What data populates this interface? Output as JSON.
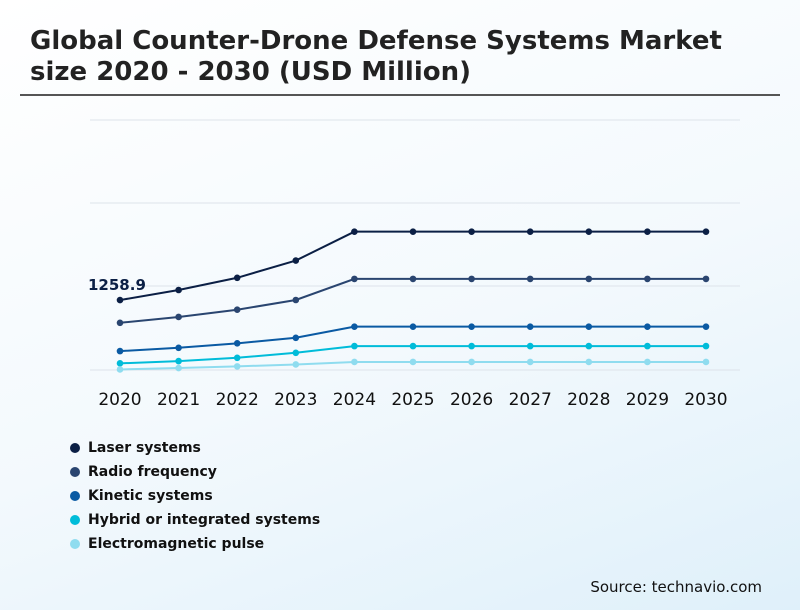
{
  "title": "Global Counter-Drone Defense Systems Market size 2020 - 2030 (USD Million)",
  "source": "Source: technavio.com",
  "chart_data": {
    "type": "line",
    "title": "Global Counter-Drone Defense Systems Market size 2020 - 2030 (USD Million)",
    "categories": [
      "2020",
      "2021",
      "2022",
      "2023",
      "2024",
      "2025",
      "2026",
      "2027",
      "2028",
      "2029",
      "2030"
    ],
    "xlabel": "",
    "ylabel": "USD Million",
    "ylim": [
      0,
      4500
    ],
    "grid": true,
    "legend_position": "bottom-left",
    "annotation": {
      "series": "Laser systems",
      "category": "2020",
      "label": "1258.9"
    },
    "series": [
      {
        "name": "Laser systems",
        "color": "#0b1f45",
        "values": [
          1258.9,
          1440,
          1660,
          1970,
          2490,
          2490,
          2490,
          2490,
          2490,
          2490,
          2490
        ]
      },
      {
        "name": "Radio frequency",
        "color": "#2a4570",
        "values": [
          850,
          955,
          1085,
          1260,
          1640,
          1640,
          1640,
          1640,
          1640,
          1640,
          1640
        ]
      },
      {
        "name": "Kinetic systems",
        "color": "#0a5aa3",
        "values": [
          340,
          400,
          480,
          580,
          780,
          780,
          780,
          780,
          780,
          780,
          780
        ]
      },
      {
        "name": "Hybrid or integrated systems",
        "color": "#00bcd9",
        "values": [
          120,
          160,
          220,
          310,
          430,
          430,
          430,
          430,
          430,
          430,
          430
        ]
      },
      {
        "name": "Electromagnetic pulse",
        "color": "#8fdcef",
        "values": [
          10,
          35,
          65,
          100,
          145,
          145,
          145,
          145,
          145,
          145,
          145
        ]
      }
    ]
  }
}
